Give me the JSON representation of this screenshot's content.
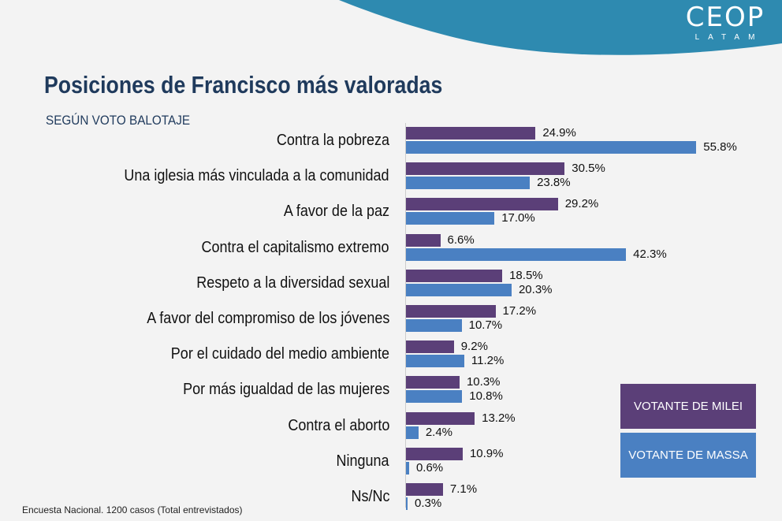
{
  "logo": {
    "name": "CEOP",
    "sub": "LATAM"
  },
  "title": "Posiciones de Francisco más valoradas",
  "subtitle": "SEGÚN VOTO BALOTAJE",
  "footnote": "Encuesta Nacional. 1200 casos (Total entrevistados)",
  "colors": {
    "milei": "#5b3f78",
    "massa": "#4a80c2",
    "header": "#2e8ab0"
  },
  "chart_data": {
    "type": "bar",
    "orientation": "horizontal",
    "categories": [
      "Contra la pobreza",
      "Una iglesia más vinculada a la comunidad",
      "A favor de la paz",
      "Contra el capitalismo extremo",
      "Respeto a la diversidad sexual",
      "A favor del compromiso de los jóvenes",
      "Por el cuidado del medio ambiente",
      "Por más igualdad de las mujeres",
      "Contra el aborto",
      "Ninguna",
      "Ns/Nc"
    ],
    "series": [
      {
        "name": "VOTANTE DE MILEI",
        "values": [
          24.9,
          30.5,
          29.2,
          6.6,
          18.5,
          17.2,
          9.2,
          10.3,
          13.2,
          10.9,
          7.1
        ],
        "labels": [
          "24.9%",
          "30.5%",
          "29.2%",
          "6.6%",
          "18.5%",
          "17.2%",
          "9.2%",
          "10.3%",
          "13.2%",
          "10.9%",
          "7.1%"
        ]
      },
      {
        "name": "VOTANTE DE MASSA",
        "values": [
          55.8,
          23.8,
          17.0,
          42.3,
          20.3,
          10.7,
          11.2,
          10.8,
          2.4,
          0.6,
          0.3
        ],
        "labels": [
          "55.8%",
          "23.8%",
          "17.0%",
          "42.3%",
          "20.3%",
          "10.7%",
          "11.2%",
          "10.8%",
          "2.4%",
          "0.6%",
          "0.3%"
        ]
      }
    ],
    "legend": "bottom-right",
    "xlim": [
      0,
      60
    ]
  }
}
